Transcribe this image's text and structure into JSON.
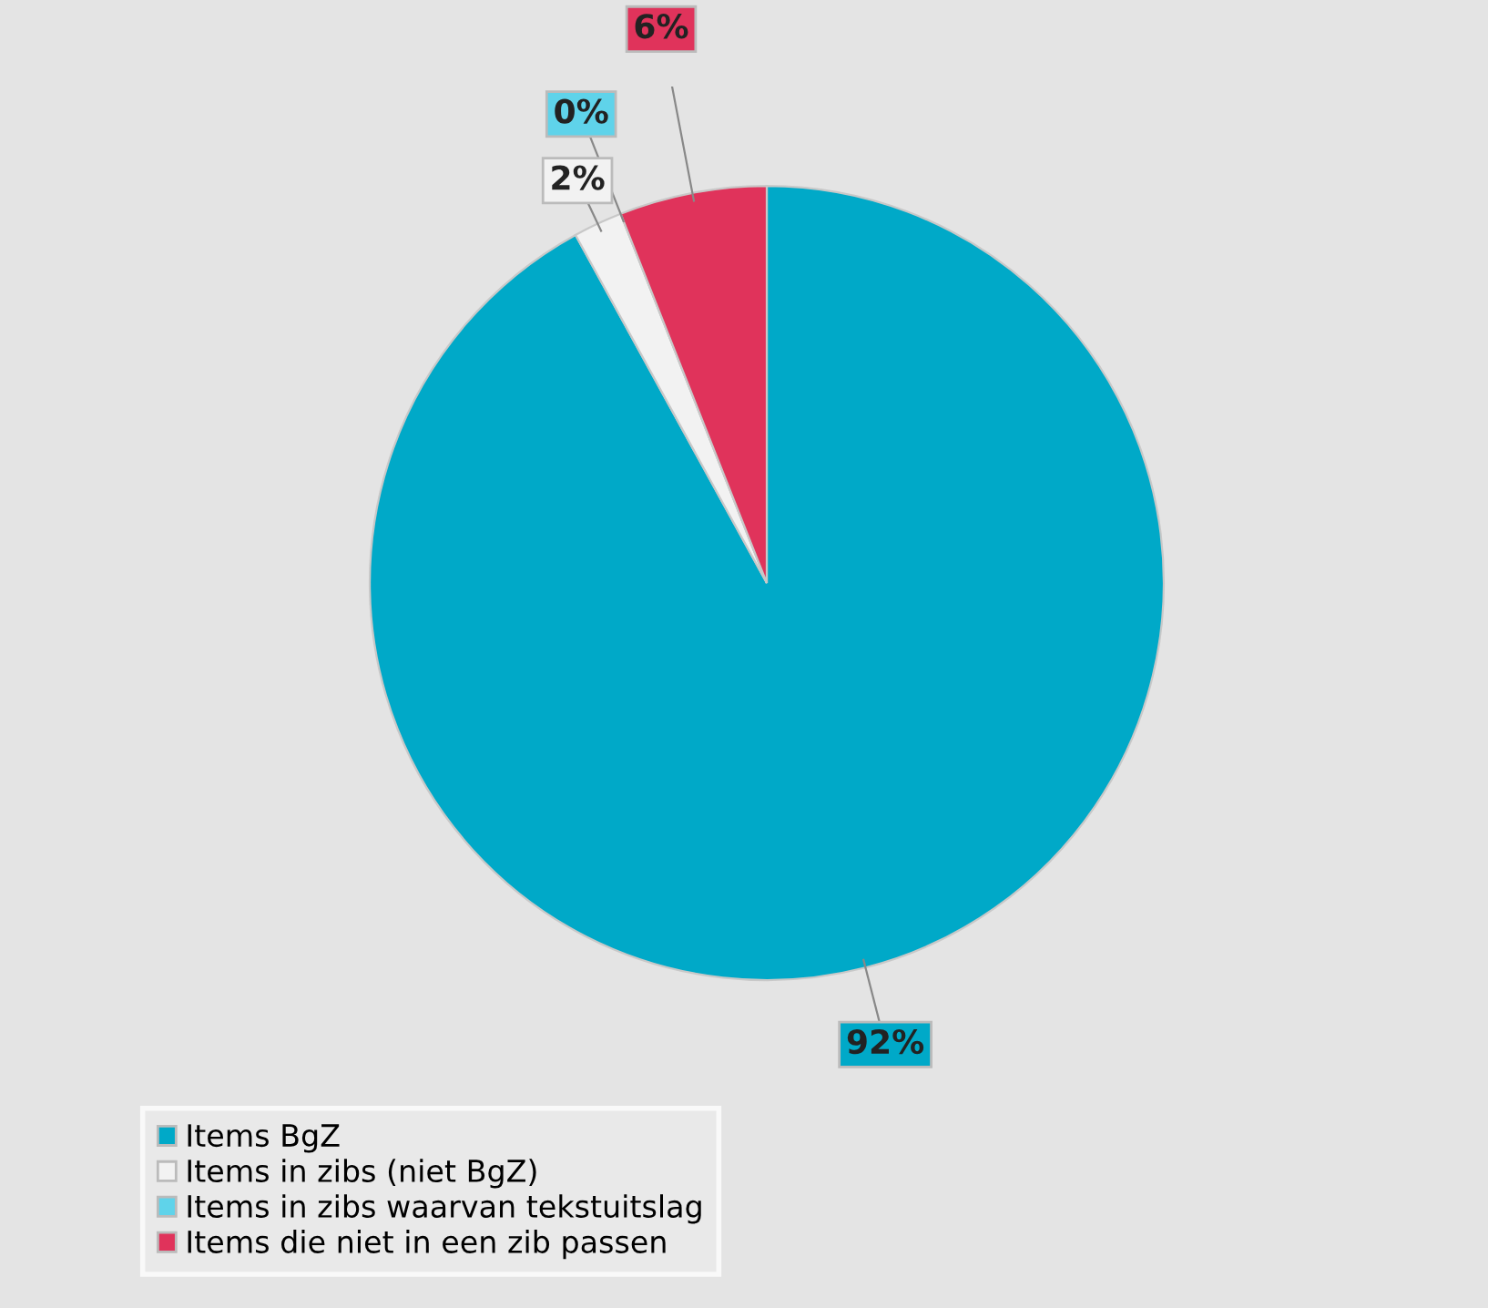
{
  "chart_data": {
    "type": "pie",
    "categories": [
      "Items BgZ",
      "Items in zibs (niet BgZ)",
      "Items in zibs waarvan tekstuitslag",
      "Items die niet in een zib passen"
    ],
    "values": [
      92,
      2,
      0,
      6
    ],
    "value_labels": [
      "92%",
      "2%",
      "0%",
      "6%"
    ],
    "colors": [
      "#00a9c8",
      "#f2f2f2",
      "#5fd3ea",
      "#e0335b"
    ],
    "legend": "bottom"
  }
}
